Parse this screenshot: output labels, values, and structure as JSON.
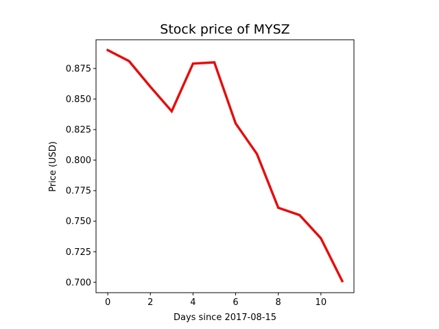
{
  "chart_data": {
    "type": "line",
    "title": "Stock price of MYSZ",
    "xlabel": "Days since 2017-08-15",
    "ylabel": "Price (USD)",
    "x": [
      0,
      1,
      2,
      3,
      4,
      5,
      6,
      7,
      8,
      9,
      10,
      11
    ],
    "series": [
      {
        "values": [
          0.89,
          0.881,
          0.86,
          0.84,
          0.879,
          0.88,
          0.83,
          0.805,
          0.761,
          0.755,
          0.736,
          0.701
        ],
        "color": "#e60d0d"
      }
    ],
    "xlim": [
      -0.55,
      11.55
    ],
    "ylim": [
      0.6915,
      0.8985
    ],
    "x_ticks": [
      0,
      2,
      4,
      6,
      8,
      10
    ],
    "x_tick_labels": [
      "0",
      "2",
      "4",
      "6",
      "8",
      "10"
    ],
    "y_ticks": [
      0.7,
      0.725,
      0.75,
      0.775,
      0.8,
      0.825,
      0.85,
      0.875
    ],
    "y_tick_labels": [
      "0.700",
      "0.725",
      "0.750",
      "0.775",
      "0.800",
      "0.825",
      "0.850",
      "0.875"
    ],
    "grid": false,
    "legend": "none"
  }
}
